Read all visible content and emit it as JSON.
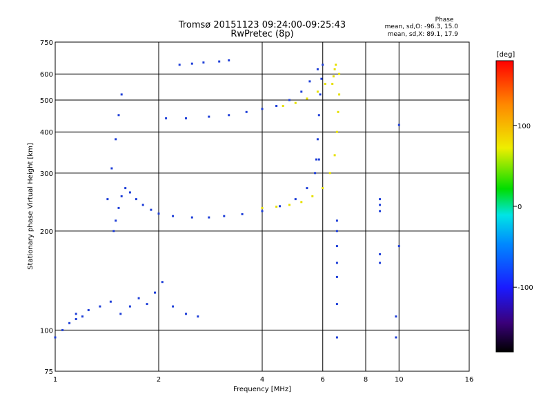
{
  "chart_data": {
    "type": "scatter",
    "title": "Tromsø 20151123 09:24:00-09:25:43",
    "subtitle": "RwPretec (8p)",
    "xlabel": "Frequency [MHz]",
    "ylabel": "Stationary phase Virtual Height [km]",
    "x_scale": "log",
    "y_scale": "log",
    "xlim": [
      1,
      16
    ],
    "ylim": [
      75,
      750
    ],
    "x_ticks": [
      1,
      2,
      4,
      6,
      8,
      10,
      16
    ],
    "y_ticks": [
      75,
      100,
      200,
      300,
      400,
      500,
      600,
      750
    ],
    "grid": true,
    "phase_stats": {
      "heading": "Phase",
      "line_o": "mean, sd,O: -96.3, 15.0",
      "line_x": "mean, sd,X:  89.1, 17.9"
    },
    "colorbar": {
      "unit": "[deg]",
      "range": [
        -180,
        180
      ],
      "ticks": [
        100,
        0,
        -100
      ],
      "colors": [
        "#000000",
        "#3a007a",
        "#1a1aff",
        "#0088ff",
        "#00e5e5",
        "#00dd00",
        "#eeee00",
        "#ff8800",
        "#ff0000"
      ]
    },
    "series": [
      {
        "mode": "O",
        "color": "#1f3fd8",
        "mean_phase": -96.3,
        "traces": [
          {
            "x": [
              1.48,
              1.5,
              1.53,
              1.56,
              1.6,
              1.65,
              1.72,
              1.8,
              1.9,
              2.0,
              2.2,
              2.5,
              2.8,
              3.1,
              3.5,
              4.0,
              4.5,
              5.0,
              5.4,
              5.7,
              5.85
            ],
            "y": [
              200,
              215,
              235,
              255,
              270,
              262,
              250,
              240,
              232,
              226,
              222,
              220,
              220,
              222,
              225,
              230,
              238,
              250,
              270,
              300,
              330
            ]
          },
          {
            "x": [
              5.75,
              5.8,
              5.85,
              5.9,
              5.95,
              6.0
            ],
            "y": [
              330,
              380,
              450,
              520,
              580,
              640
            ]
          },
          {
            "x": [
              2.1,
              2.4,
              2.8,
              3.2,
              3.6,
              4.0,
              4.4,
              4.8,
              5.2,
              5.5,
              5.8
            ],
            "y": [
              440,
              440,
              445,
              450,
              460,
              470,
              480,
              500,
              530,
              570,
              620
            ]
          },
          {
            "x": [
              1.42,
              1.46,
              1.5,
              1.53,
              1.56
            ],
            "y": [
              250,
              310,
              380,
              450,
              520
            ]
          },
          {
            "x": [
              1.15,
              1.25,
              1.35,
              1.45,
              1.55,
              1.65,
              1.75,
              1.85,
              1.95,
              2.05,
              2.2,
              2.4,
              2.6
            ],
            "y": [
              112,
              115,
              118,
              122,
              112,
              118,
              125,
              120,
              130,
              140,
              118,
              112,
              110
            ]
          },
          {
            "x": [
              1.0,
              1.05,
              1.1,
              1.15,
              1.2
            ],
            "y": [
              95,
              100,
              105,
              108,
              110
            ]
          },
          {
            "x": [
              2.3,
              2.5,
              2.7,
              3.0,
              3.2
            ],
            "y": [
              640,
              645,
              650,
              655,
              660
            ]
          }
        ]
      },
      {
        "mode": "X",
        "color": "#e6e000",
        "mean_phase": 89.1,
        "traces": [
          {
            "x": [
              4.0,
              4.4,
              4.8,
              5.2,
              5.6,
              6.0,
              6.3,
              6.5,
              6.6,
              6.65,
              6.7,
              6.7
            ],
            "y": [
              235,
              237,
              240,
              245,
              255,
              270,
              300,
              340,
              400,
              460,
              520,
              600
            ]
          },
          {
            "x": [
              4.6,
              5.0,
              5.4,
              5.8,
              6.1
            ],
            "y": [
              480,
              490,
              505,
              530,
              560
            ]
          },
          {
            "x": [
              6.4,
              6.45,
              6.5,
              6.55
            ],
            "y": [
              560,
              590,
              620,
              640
            ]
          }
        ]
      },
      {
        "mode": "O",
        "color": "#1f3fd8",
        "mean_phase": -96.3,
        "traces": [
          {
            "x": [
              6.6,
              6.6,
              6.6,
              6.6,
              6.6,
              6.6,
              6.6
            ],
            "y": [
              95,
              120,
              145,
              160,
              180,
              200,
              215
            ]
          },
          {
            "x": [
              8.8,
              8.8,
              8.8,
              8.8,
              8.8
            ],
            "y": [
              160,
              170,
              230,
              240,
              250
            ]
          },
          {
            "x": [
              9.8,
              9.8,
              10.0,
              10.0
            ],
            "y": [
              95,
              110,
              180,
              420
            ]
          }
        ]
      }
    ]
  }
}
